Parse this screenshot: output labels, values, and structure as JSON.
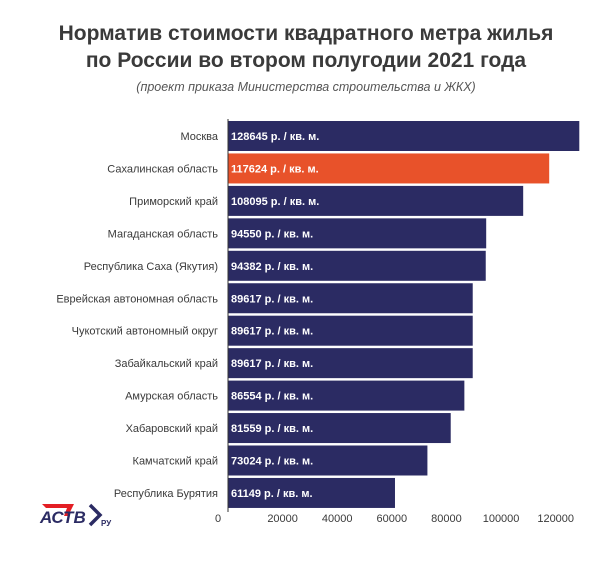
{
  "header": {
    "title_line1": "Норматив стоимости квадратного метра жилья",
    "title_line2": "по России во втором полугодии 2021 года",
    "subtitle": "(проект приказа Министерства строительства и ЖКХ)"
  },
  "logo": {
    "text": "АСТВ",
    "suffix": "РУ"
  },
  "colors": {
    "bar": "#2b2b63",
    "highlight": "#e8522a",
    "text": "#3a3a3a"
  },
  "chart_data": {
    "type": "bar",
    "orientation": "horizontal",
    "categories": [
      "Москва",
      "Сахалинская область",
      "Приморский край",
      "Магаданская область",
      "Республика Саха (Якутия)",
      "Еврейская автономная область",
      "Чукотский автономный округ",
      "Забайкальский край",
      "Амурская область",
      "Хабаровский край",
      "Камчатский край",
      "Республика Бурятия"
    ],
    "values": [
      128645,
      117624,
      108095,
      94550,
      94382,
      89617,
      89617,
      89617,
      86554,
      81559,
      73024,
      61149
    ],
    "value_labels": [
      "128645 р. / кв. м.",
      "117624 р. / кв. м.",
      "108095 р. / кв. м.",
      "94550 р. / кв. м.",
      "94382 р. / кв. м.",
      "89617 р. / кв. м.",
      "89617 р. / кв. м.",
      "89617 р. / кв. м.",
      "86554 р. / кв. м.",
      "81559 р. / кв. м.",
      "73024 р. / кв. м.",
      "61149 р. / кв. м."
    ],
    "highlight_index": 1,
    "x_ticks": [
      0,
      20000,
      40000,
      60000,
      80000,
      100000,
      120000
    ],
    "xlim": [
      0,
      130000
    ],
    "grid": false
  }
}
